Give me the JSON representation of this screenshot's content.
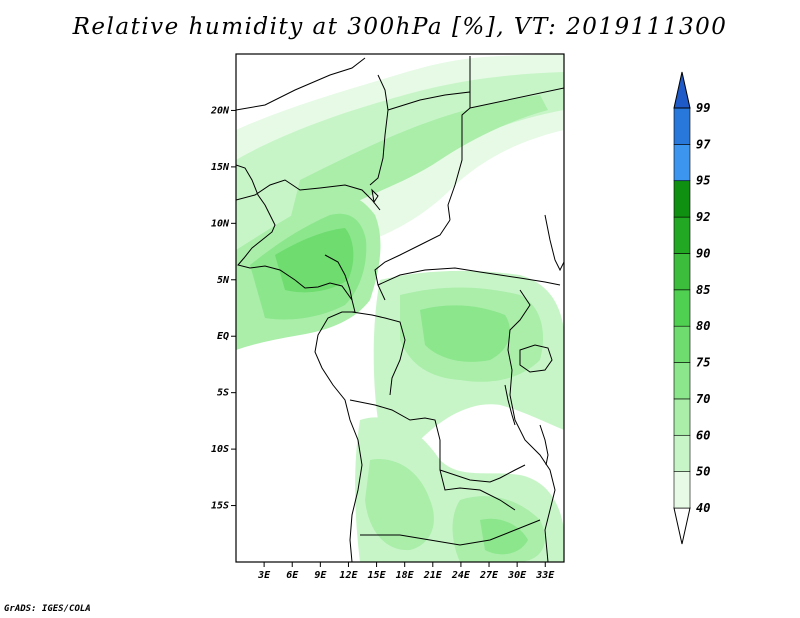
{
  "title": "Relative humidity at 300hPa [%], VT: 2019111300",
  "credit": "GrADS: IGES/COLA",
  "map": {
    "lon_range": [
      0,
      35
    ],
    "lat_range": [
      -20,
      25
    ],
    "lat_ticks": [
      {
        "value": 20,
        "label": "20N"
      },
      {
        "value": 15,
        "label": "15N"
      },
      {
        "value": 10,
        "label": "10N"
      },
      {
        "value": 5,
        "label": "5N"
      },
      {
        "value": 0,
        "label": "EQ"
      },
      {
        "value": -5,
        "label": "5S"
      },
      {
        "value": -10,
        "label": "10S"
      },
      {
        "value": -15,
        "label": "15S"
      }
    ],
    "lon_ticks": [
      {
        "value": 3,
        "label": "3E"
      },
      {
        "value": 6,
        "label": "6E"
      },
      {
        "value": 9,
        "label": "9E"
      },
      {
        "value": 12,
        "label": "12E"
      },
      {
        "value": 15,
        "label": "15E"
      },
      {
        "value": 18,
        "label": "18E"
      },
      {
        "value": 21,
        "label": "21E"
      },
      {
        "value": 24,
        "label": "24E"
      },
      {
        "value": 27,
        "label": "27E"
      },
      {
        "value": 30,
        "label": "30E"
      },
      {
        "value": 33,
        "label": "33E"
      }
    ]
  },
  "colorbar": {
    "levels": [
      {
        "label": "40",
        "color": "#e6fae6"
      },
      {
        "label": "50",
        "color": "#c8f5c8"
      },
      {
        "label": "60",
        "color": "#aaeeaa"
      },
      {
        "label": "70",
        "color": "#8ce68c"
      },
      {
        "label": "75",
        "color": "#6edc6e"
      },
      {
        "label": "80",
        "color": "#50d050"
      },
      {
        "label": "85",
        "color": "#3cbe3c"
      },
      {
        "label": "90",
        "color": "#22a822"
      },
      {
        "label": "92",
        "color": "#109010"
      },
      {
        "label": "95",
        "color": "#3c96f0"
      },
      {
        "label": "97",
        "color": "#2878dc"
      },
      {
        "label": "99",
        "color": "#1e5ac8"
      }
    ],
    "below_color": "#ffffff"
  }
}
